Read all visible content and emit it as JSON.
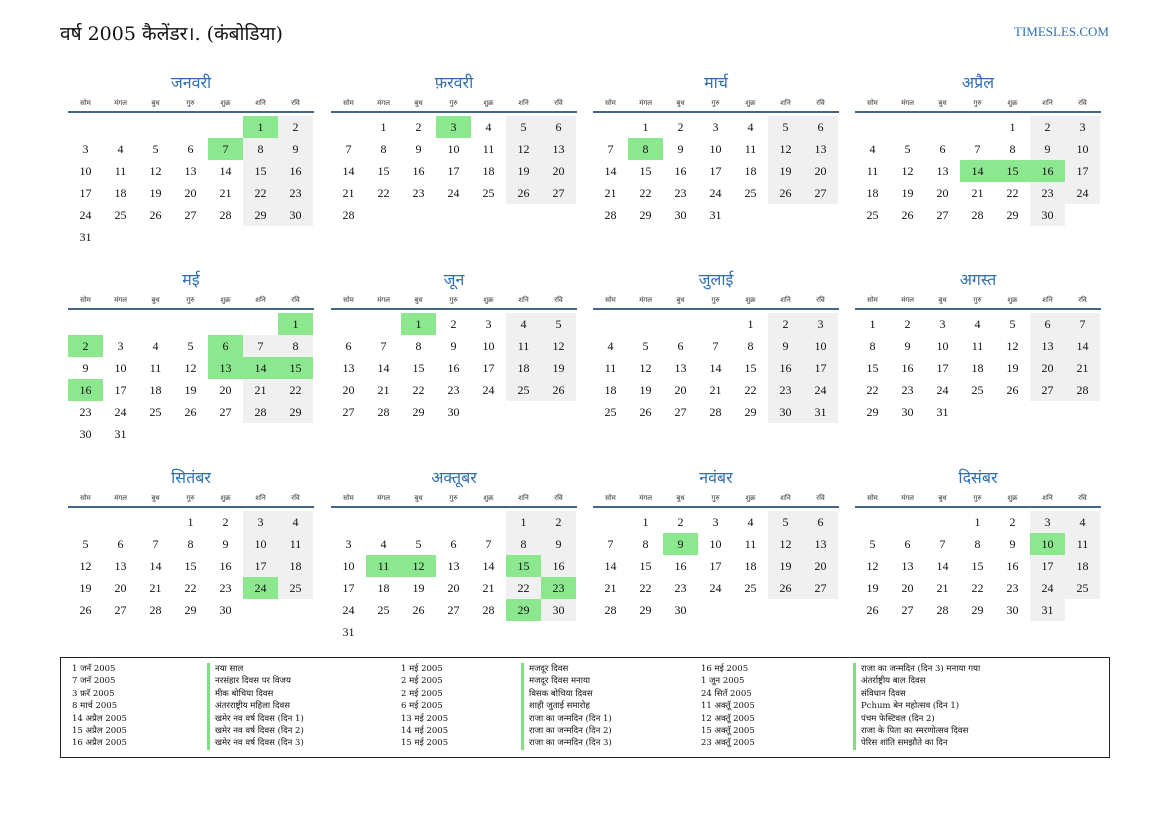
{
  "header": {
    "title": "वर्ष 2005 कैलेंडर।. (कंबोडिया)",
    "brand": "TIMESLES.COM"
  },
  "weekdays": [
    "सोम",
    "मंगल",
    "बुध",
    "गुरु",
    "शुक्र",
    "शनि",
    "रवि"
  ],
  "months": [
    {
      "name": "जनवरी",
      "offset": 5,
      "days": 31,
      "holidays": [
        1,
        7
      ]
    },
    {
      "name": "फ़रवरी",
      "offset": 1,
      "days": 28,
      "holidays": [
        3
      ]
    },
    {
      "name": "मार्च",
      "offset": 1,
      "days": 31,
      "holidays": [
        8
      ]
    },
    {
      "name": "अप्रैल",
      "offset": 4,
      "days": 30,
      "holidays": [
        14,
        15,
        16
      ]
    },
    {
      "name": "मई",
      "offset": 6,
      "days": 31,
      "holidays": [
        1,
        2,
        6,
        13,
        14,
        15,
        16
      ]
    },
    {
      "name": "जून",
      "offset": 2,
      "days": 30,
      "holidays": [
        1
      ]
    },
    {
      "name": "जुलाई",
      "offset": 4,
      "days": 31,
      "holidays": []
    },
    {
      "name": "अगस्त",
      "offset": 0,
      "days": 31,
      "holidays": []
    },
    {
      "name": "सितंबर",
      "offset": 3,
      "days": 30,
      "holidays": [
        24
      ]
    },
    {
      "name": "अक्तूबर",
      "offset": 5,
      "days": 31,
      "holidays": [
        11,
        12,
        15,
        23,
        29
      ]
    },
    {
      "name": "नवंबर",
      "offset": 1,
      "days": 30,
      "holidays": [
        9
      ]
    },
    {
      "name": "दिसंबर",
      "offset": 3,
      "days": 31,
      "holidays": [
        10
      ]
    }
  ],
  "holiday_list": [
    {
      "date": "1 जनॅ 2005",
      "name": "नया साल"
    },
    {
      "date": "7 जनॅ 2005",
      "name": "नरसंहार दिवस पर विजय"
    },
    {
      "date": "3 फ़रॅ 2005",
      "name": "मीक बोचिया दिवस"
    },
    {
      "date": "8 मार्च 2005",
      "name": "अंतरराष्ट्रीय महिला दिवस"
    },
    {
      "date": "14 अप्रैल 2005",
      "name": "खमेर नव वर्ष दिवस (दिन 1)"
    },
    {
      "date": "15 अप्रैल 2005",
      "name": "खमेर नव वर्ष दिवस (दिन 2)"
    },
    {
      "date": "16 अप्रैल 2005",
      "name": "खमेर नव वर्ष दिवस (दिन 3)"
    },
    {
      "date": "1 मई 2005",
      "name": "मजदूर दिवस"
    },
    {
      "date": "2 मई 2005",
      "name": "मजदूर दिवस मनाया"
    },
    {
      "date": "2 मई 2005",
      "name": "विसक बोचिया दिवस"
    },
    {
      "date": "6 मई 2005",
      "name": "शाही जुताई समारोह"
    },
    {
      "date": "13 मई 2005",
      "name": "राजा का जन्मदिन (दिन 1)"
    },
    {
      "date": "14 मई 2005",
      "name": "राजा का जन्मदिन (दिन 2)"
    },
    {
      "date": "15 मई 2005",
      "name": "राजा का जन्मदिन (दिन 3)"
    },
    {
      "date": "16 मई 2005",
      "name": "राजा का जन्मदिन (दिन 3) मनाया गया"
    },
    {
      "date": "1 जून 2005",
      "name": "अंतर्राष्ट्रीय बाल दिवस"
    },
    {
      "date": "24 सितॅ 2005",
      "name": "संविधान दिवस"
    },
    {
      "date": "11 अक्तूॅ 2005",
      "name": "Pchum बेन महोत्सव (दिन 1)"
    },
    {
      "date": "12 अक्तूॅ 2005",
      "name": "पंचम फेस्टिवल (दिन 2)"
    },
    {
      "date": "15 अक्तूॅ 2005",
      "name": "राजा के पिता का स्मरणोत्सव दिवस"
    },
    {
      "date": "23 अक्तूॅ 2005",
      "name": "पेरिस शांति समझौते का दिन"
    }
  ]
}
